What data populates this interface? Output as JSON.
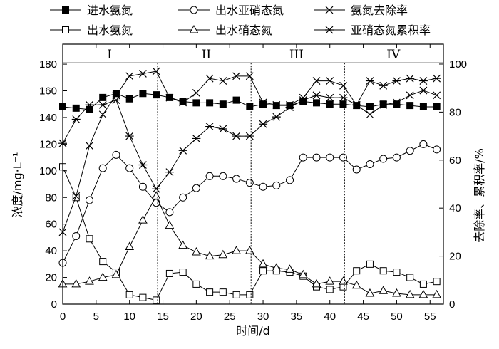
{
  "chart_data": {
    "type": "line",
    "xlabel": "时间/d",
    "ylabel_left": "浓度/mg·L⁻¹",
    "ylabel_right": "去除率、累积率/%",
    "xlim": [
      0,
      57
    ],
    "ylim_left": [
      0,
      180
    ],
    "ylim_right": [
      0,
      100
    ],
    "xticks": [
      0,
      5,
      10,
      15,
      20,
      25,
      30,
      35,
      40,
      45,
      50,
      55
    ],
    "yticks_left": [
      0,
      20,
      40,
      60,
      80,
      100,
      120,
      140,
      160,
      180
    ],
    "yticks_right": [
      0,
      20,
      40,
      60,
      80,
      100
    ],
    "phase_boundaries": [
      14.2,
      28.2,
      42.2
    ],
    "phase_line_y": 181,
    "phases": [
      {
        "label": "I",
        "x": 7
      },
      {
        "label": "II",
        "x": 21.5
      },
      {
        "label": "III",
        "x": 35
      },
      {
        "label": "IV",
        "x": 49.5
      }
    ],
    "x": [
      0,
      2,
      4,
      6,
      8,
      10,
      12,
      14,
      16,
      18,
      20,
      22,
      24,
      26,
      28,
      30,
      32,
      34,
      36,
      38,
      40,
      42,
      44,
      46,
      48,
      50,
      52,
      54,
      56
    ],
    "series": [
      {
        "name": "进水氨氮",
        "axis": "left",
        "marker": "filled-square",
        "values": [
          148,
          147,
          146,
          155,
          158,
          154,
          158,
          157,
          155,
          152,
          151,
          151,
          150,
          153,
          148,
          150,
          149,
          149,
          152,
          151,
          150,
          150,
          149,
          148,
          150,
          150,
          149,
          148,
          148
        ]
      },
      {
        "name": "出水氨氮",
        "axis": "left",
        "marker": "open-square",
        "values": [
          103,
          80,
          49,
          32,
          24,
          7,
          5,
          3,
          23,
          24,
          15,
          9,
          9,
          7,
          7,
          25,
          25,
          24,
          21,
          13,
          11,
          13,
          25,
          30,
          25,
          24,
          20,
          15,
          17
        ]
      },
      {
        "name": "出水亚硝态氮",
        "axis": "left",
        "marker": "open-circle",
        "values": [
          31,
          51,
          78,
          102,
          112,
          102,
          88,
          76,
          69,
          80,
          87,
          96,
          96,
          94,
          91,
          88,
          89,
          93,
          110,
          110,
          110,
          110,
          101,
          105,
          109,
          110,
          115,
          120,
          116
        ]
      },
      {
        "name": "出水硝态氮",
        "axis": "left",
        "marker": "open-triangle",
        "values": [
          15,
          15,
          17,
          20,
          22,
          43,
          63,
          81,
          59,
          44,
          39,
          36,
          37,
          40,
          40,
          30,
          27,
          26,
          22,
          15,
          17,
          17,
          14,
          8,
          10,
          8,
          7,
          7,
          7
        ]
      },
      {
        "name": "氨氮去除率",
        "axis": "right",
        "marker": "x",
        "values": [
          30,
          45,
          66,
          79,
          87,
          95,
          96,
          97,
          86,
          84,
          88,
          94,
          93,
          95,
          95,
          84,
          83,
          83,
          86,
          93,
          93,
          91,
          83,
          79,
          83,
          84,
          87,
          89,
          87
        ]
      },
      {
        "name": "亚硝态氮累积率",
        "axis": "right",
        "marker": "asterisk",
        "values": [
          67,
          77,
          83,
          83,
          85,
          70,
          58,
          48,
          55,
          64,
          69,
          74,
          73,
          70,
          70,
          75,
          78,
          82,
          85,
          87,
          86,
          86,
          83,
          93,
          91,
          93,
          94,
          93,
          94
        ]
      }
    ]
  }
}
